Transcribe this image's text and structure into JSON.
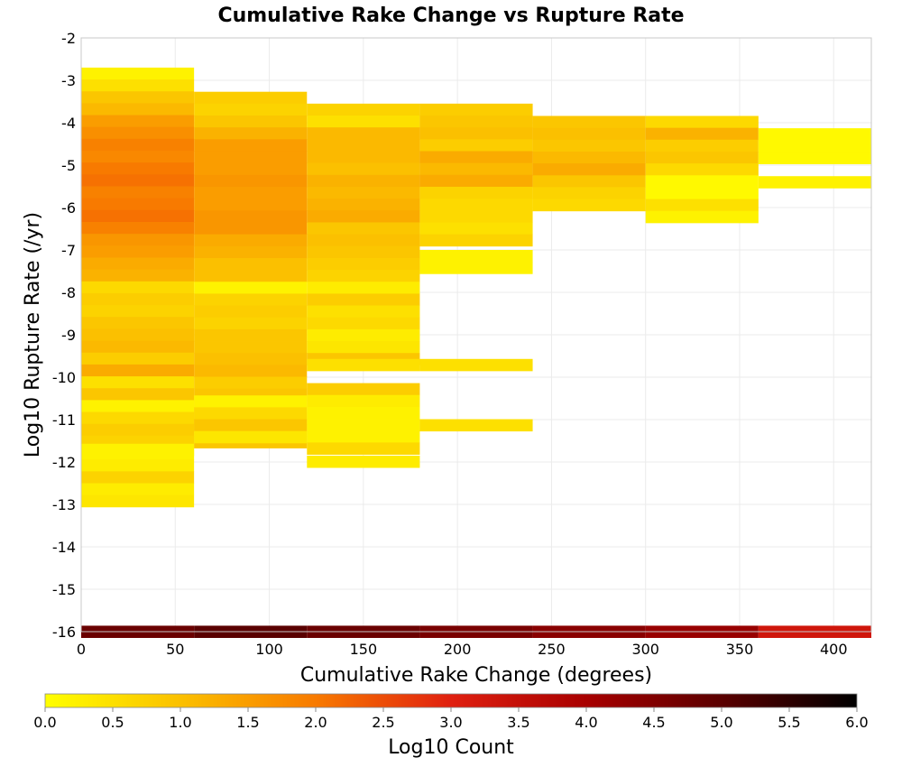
{
  "chart_data": {
    "type": "heatmap",
    "title": "Cumulative Rake Change vs Rupture Rate",
    "xlabel": "Cumulative Rake Change (degrees)",
    "ylabel": "Log10 Rupture Rate (/yr)",
    "xlim": [
      0,
      420
    ],
    "ylim": [
      -16,
      -2
    ],
    "x_ticks": [
      "0",
      "50",
      "100",
      "150",
      "200",
      "250",
      "300",
      "350",
      "400"
    ],
    "y_ticks": [
      "-2",
      "-3",
      "-4",
      "-5",
      "-6",
      "-7",
      "-8",
      "-9",
      "-10",
      "-11",
      "-12",
      "-13",
      "-14",
      "-15",
      "-16"
    ],
    "grid": true,
    "x_bin_width": 60,
    "y_bin_height": 0.28,
    "colorbar": {
      "label": "Log10 Count",
      "min": 0,
      "max": 6,
      "ticks": [
        "0.0",
        "0.5",
        "1.0",
        "1.5",
        "2.0",
        "2.5",
        "3.0",
        "3.5",
        "4.0",
        "4.5",
        "5.0",
        "5.5",
        "6.0"
      ],
      "stops": [
        {
          "v": 0.0,
          "color": "#ffff00"
        },
        {
          "v": 1.0,
          "color": "#fbc000"
        },
        {
          "v": 2.0,
          "color": "#f87a00"
        },
        {
          "v": 3.0,
          "color": "#e02010"
        },
        {
          "v": 4.0,
          "color": "#a80000"
        },
        {
          "v": 5.0,
          "color": "#5a0000"
        },
        {
          "v": 6.0,
          "color": "#000000"
        }
      ]
    },
    "cells": [
      {
        "x": 0,
        "y_top": -2.7,
        "rows": [
          0.2,
          0.5,
          0.9,
          1.1,
          1.5,
          1.7,
          1.9,
          1.8,
          2.0,
          2.1,
          1.9,
          2.0,
          2.1,
          1.9,
          1.6,
          1.5,
          1.3,
          1.2,
          0.6,
          0.8,
          0.7,
          0.9,
          1.0,
          1.1,
          0.8,
          1.3,
          0.5,
          0.9,
          0.2,
          0.6,
          0.8,
          0.7,
          0.2,
          0.3,
          0.7,
          0.3,
          0.4
        ]
      },
      {
        "x": 0,
        "y_top": -11.57,
        "rows": [
          0.2
        ]
      },
      {
        "x": 60,
        "y_top": -3.27,
        "rows": [
          0.8,
          0.7,
          0.9,
          1.2,
          1.5,
          1.5,
          1.5,
          1.6,
          1.5,
          1.5,
          1.6,
          1.6,
          1.3,
          1.2,
          1.0,
          1.0,
          0.2,
          0.7,
          0.8,
          0.7,
          0.9,
          0.9,
          1.0,
          1.1,
          0.8,
          0.9,
          0.6,
          0.8,
          0.9,
          0.9
        ]
      },
      {
        "x": 60,
        "y_top": -10.43,
        "rows": [
          0.2,
          0.6,
          0.9,
          0.4
        ]
      },
      {
        "x": 120,
        "y_top": -3.55,
        "rows": [
          0.7,
          0.5,
          1.1,
          1.1,
          1.1,
          1.0,
          1.2,
          1.1,
          1.2,
          1.3,
          0.9,
          1.0,
          0.9,
          0.8,
          0.7,
          0.3,
          0.8,
          0.5,
          0.6,
          0.3,
          0.4,
          0.9
        ]
      },
      {
        "x": 120,
        "y_top": -9.57,
        "rows": [
          0.5
        ]
      },
      {
        "x": 120,
        "y_top": -10.14,
        "rows": [
          0.8,
          0.3,
          0.2,
          0.2,
          0.2,
          0.6
        ]
      },
      {
        "x": 120,
        "y_top": -11.85,
        "rows": [
          0.3
        ]
      },
      {
        "x": 180,
        "y_top": -3.55,
        "rows": [
          0.8,
          0.9,
          1.0,
          0.8,
          1.3,
          1.1,
          1.3,
          0.7,
          0.6,
          0.6,
          0.5,
          0.7
        ]
      },
      {
        "x": 180,
        "y_top": -7.0,
        "rows": [
          0.2,
          0.2
        ]
      },
      {
        "x": 180,
        "y_top": -9.57,
        "rows": [
          0.5
        ]
      },
      {
        "x": 180,
        "y_top": -10.99,
        "rows": [
          0.5
        ]
      },
      {
        "x": 240,
        "y_top": -3.84,
        "rows": [
          0.9,
          1.0,
          0.9,
          1.1,
          1.3,
          0.9,
          0.7,
          0.6
        ]
      },
      {
        "x": 300,
        "y_top": -3.84,
        "rows": [
          0.6,
          1.2,
          0.8,
          0.9,
          0.6,
          0.1,
          0.1,
          0.5,
          0.2
        ]
      },
      {
        "x": 360,
        "y_top": -4.13,
        "rows": [
          0.1,
          0.1,
          0.1
        ]
      },
      {
        "x": 360,
        "y_top": -5.26,
        "rows": [
          0.2
        ]
      },
      {
        "x": 0,
        "y_top": -15.86,
        "rows": [
          4.8
        ]
      },
      {
        "x": 60,
        "y_top": -15.86,
        "rows": [
          5.0
        ]
      },
      {
        "x": 120,
        "y_top": -15.86,
        "rows": [
          4.8
        ]
      },
      {
        "x": 180,
        "y_top": -15.86,
        "rows": [
          4.6
        ]
      },
      {
        "x": 240,
        "y_top": -15.86,
        "rows": [
          4.4
        ]
      },
      {
        "x": 300,
        "y_top": -15.86,
        "rows": [
          4.2
        ]
      },
      {
        "x": 360,
        "y_top": -15.86,
        "rows": [
          3.3
        ]
      }
    ]
  }
}
